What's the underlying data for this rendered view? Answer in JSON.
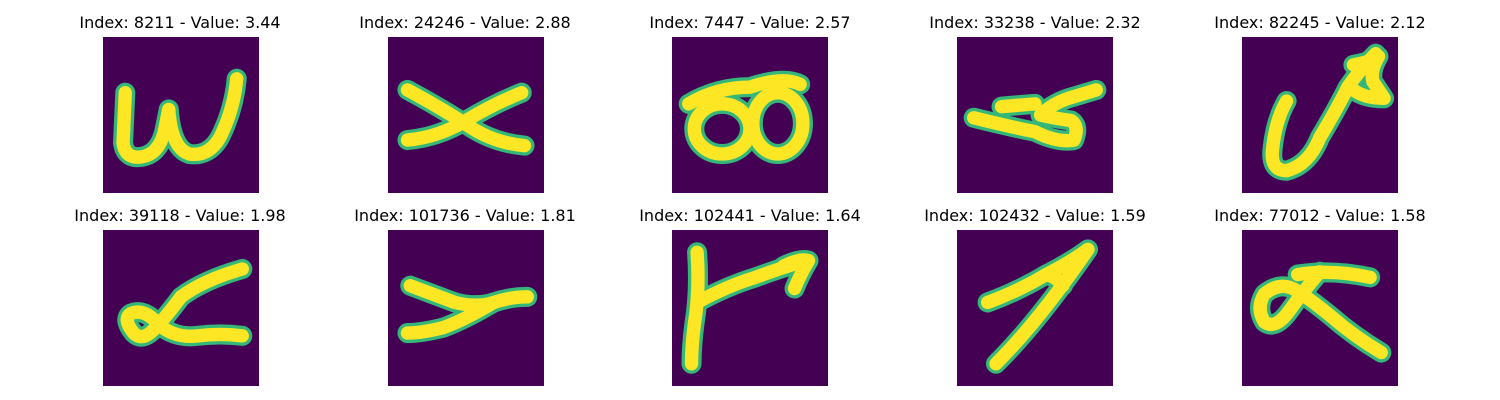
{
  "colors": {
    "background": "#440154",
    "stroke": "#fde725",
    "edge": "#35b779",
    "edge_dark": "#21918c"
  },
  "panels": [
    {
      "index": "8211",
      "value": "3.44",
      "title": "Index: 8211 - Value: 3.44",
      "glyph": "handwritten-w"
    },
    {
      "index": "24246",
      "value": "2.88",
      "title": "Index: 24246 - Value: 2.88",
      "glyph": "handwritten-x"
    },
    {
      "index": "7447",
      "value": "2.57",
      "title": "Index: 7447 - Value: 2.57",
      "glyph": "handwritten-oo"
    },
    {
      "index": "33238",
      "value": "2.32",
      "title": "Index: 33238 - Value: 2.32",
      "glyph": "handwritten-stroke"
    },
    {
      "index": "82245",
      "value": "2.12",
      "title": "Index: 82245 - Value: 2.12",
      "glyph": "handwritten-loop-arrow"
    },
    {
      "index": "39118",
      "value": "1.98",
      "title": "Index: 39118 - Value: 1.98",
      "glyph": "handwritten-alpha"
    },
    {
      "index": "101736",
      "value": "1.81",
      "title": "Index: 101736 - Value: 1.81",
      "glyph": "handwritten-y"
    },
    {
      "index": "102441",
      "value": "1.64",
      "title": "Index: 102441 - Value: 1.64",
      "glyph": "handwritten-y-arrow"
    },
    {
      "index": "102432",
      "value": "1.59",
      "title": "Index: 102432 - Value: 1.59",
      "glyph": "handwritten-arrow-seven"
    },
    {
      "index": "77012",
      "value": "1.58",
      "title": "Index: 77012 - Value: 1.58",
      "glyph": "handwritten-alpha-cross"
    }
  ]
}
